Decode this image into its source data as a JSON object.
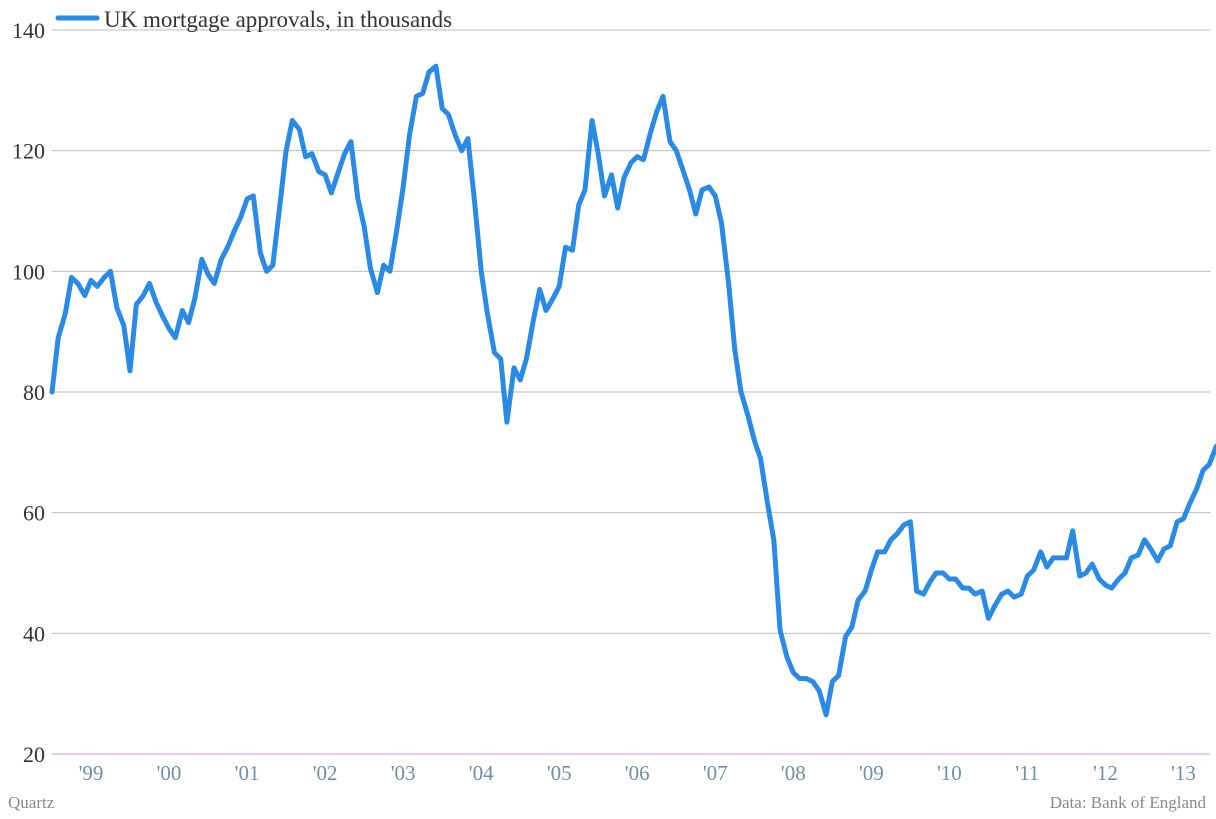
{
  "colors": {
    "series": "#2a8be6",
    "grid": "#bdbdbd",
    "baseline": "#d88fd6",
    "ytick": "#333333",
    "xtick": "#6f8fa6",
    "footer": "#8a8a8a"
  },
  "footer": {
    "source_left": "Quartz",
    "source_right": "Data: Bank of England"
  },
  "chart_data": {
    "type": "line",
    "title": "",
    "xlabel": "",
    "ylabel": "",
    "ylim": [
      20,
      140
    ],
    "yticks": [
      20,
      40,
      60,
      80,
      100,
      120,
      140
    ],
    "xlim": [
      1999.0,
      2013.75
    ],
    "grid": "horizontal",
    "legend": {
      "placement": "top-left"
    },
    "x_tick_labels": [
      "'99",
      "'00",
      "'01",
      "'02",
      "'03",
      "'04",
      "'05",
      "'06",
      "'07",
      "'08",
      "'09",
      "'10",
      "'11",
      "'12",
      "'13"
    ],
    "series": [
      {
        "name": "UK mortgage approvals, in thousands",
        "points": [
          [
            1999.0,
            80.0
          ],
          [
            1999.08,
            89.0
          ],
          [
            1999.17,
            93.0
          ],
          [
            1999.25,
            99.0
          ],
          [
            1999.33,
            98.0
          ],
          [
            1999.42,
            96.0
          ],
          [
            1999.5,
            98.5
          ],
          [
            1999.58,
            97.5
          ],
          [
            1999.67,
            99.0
          ],
          [
            1999.75,
            100.0
          ],
          [
            1999.83,
            94.0
          ],
          [
            1999.92,
            91.0
          ],
          [
            2000.0,
            83.5
          ],
          [
            2000.08,
            94.5
          ],
          [
            2000.17,
            96.0
          ],
          [
            2000.25,
            98.0
          ],
          [
            2000.33,
            95.0
          ],
          [
            2000.42,
            92.5
          ],
          [
            2000.5,
            90.5
          ],
          [
            2000.58,
            89.0
          ],
          [
            2000.67,
            93.5
          ],
          [
            2000.75,
            91.5
          ],
          [
            2000.83,
            95.5
          ],
          [
            2000.92,
            102.0
          ],
          [
            2001.0,
            99.5
          ],
          [
            2001.08,
            98.0
          ],
          [
            2001.17,
            102.0
          ],
          [
            2001.25,
            104.0
          ],
          [
            2001.33,
            106.5
          ],
          [
            2001.42,
            109.0
          ],
          [
            2001.5,
            112.0
          ],
          [
            2001.58,
            112.5
          ],
          [
            2001.67,
            103.0
          ],
          [
            2001.75,
            100.0
          ],
          [
            2001.83,
            101.0
          ],
          [
            2001.92,
            111.0
          ],
          [
            2002.0,
            120.0
          ],
          [
            2002.08,
            125.0
          ],
          [
            2002.17,
            123.5
          ],
          [
            2002.25,
            119.0
          ],
          [
            2002.33,
            119.5
          ],
          [
            2002.42,
            116.5
          ],
          [
            2002.5,
            116.0
          ],
          [
            2002.58,
            113.0
          ],
          [
            2002.67,
            116.5
          ],
          [
            2002.75,
            119.5
          ],
          [
            2002.83,
            121.5
          ],
          [
            2002.92,
            112.0
          ],
          [
            2003.0,
            107.5
          ],
          [
            2003.08,
            100.5
          ],
          [
            2003.17,
            96.5
          ],
          [
            2003.25,
            101.0
          ],
          [
            2003.33,
            100.0
          ],
          [
            2003.42,
            107.0
          ],
          [
            2003.5,
            114.0
          ],
          [
            2003.58,
            122.5
          ],
          [
            2003.67,
            129.0
          ],
          [
            2003.75,
            129.5
          ],
          [
            2003.83,
            133.0
          ],
          [
            2003.92,
            134.0
          ],
          [
            2004.0,
            127.0
          ],
          [
            2004.08,
            126.0
          ],
          [
            2004.17,
            122.5
          ],
          [
            2004.25,
            120.0
          ],
          [
            2004.33,
            122.0
          ],
          [
            2004.42,
            111.0
          ],
          [
            2004.5,
            100.0
          ],
          [
            2004.58,
            93.0
          ],
          [
            2004.67,
            86.5
          ],
          [
            2004.75,
            85.5
          ],
          [
            2004.83,
            75.0
          ],
          [
            2004.92,
            84.0
          ],
          [
            2005.0,
            82.0
          ],
          [
            2005.08,
            85.5
          ],
          [
            2005.17,
            92.0
          ],
          [
            2005.25,
            97.0
          ],
          [
            2005.33,
            93.5
          ],
          [
            2005.42,
            95.5
          ],
          [
            2005.5,
            97.5
          ],
          [
            2005.58,
            104.0
          ],
          [
            2005.67,
            103.5
          ],
          [
            2005.75,
            111.0
          ],
          [
            2005.83,
            113.5
          ],
          [
            2005.92,
            125.0
          ],
          [
            2006.0,
            119.5
          ],
          [
            2006.08,
            112.5
          ],
          [
            2006.17,
            116.0
          ],
          [
            2006.25,
            110.5
          ],
          [
            2006.33,
            115.5
          ],
          [
            2006.42,
            118.0
          ],
          [
            2006.5,
            119.0
          ],
          [
            2006.58,
            118.5
          ],
          [
            2006.67,
            123.0
          ],
          [
            2006.75,
            126.5
          ],
          [
            2006.83,
            129.0
          ],
          [
            2006.92,
            121.5
          ],
          [
            2007.0,
            120.0
          ],
          [
            2007.08,
            117.0
          ],
          [
            2007.17,
            113.5
          ],
          [
            2007.25,
            109.5
          ],
          [
            2007.33,
            113.5
          ],
          [
            2007.42,
            114.0
          ],
          [
            2007.5,
            112.5
          ],
          [
            2007.58,
            108.0
          ],
          [
            2007.67,
            98.0
          ],
          [
            2007.75,
            87.0
          ],
          [
            2007.83,
            80.0
          ],
          [
            2007.92,
            76.0
          ],
          [
            2008.0,
            72.0
          ],
          [
            2008.08,
            69.0
          ],
          [
            2008.17,
            61.5
          ],
          [
            2008.25,
            55.5
          ],
          [
            2008.33,
            40.5
          ],
          [
            2008.42,
            36.0
          ],
          [
            2008.5,
            33.5
          ],
          [
            2008.58,
            32.5
          ],
          [
            2008.67,
            32.5
          ],
          [
            2008.75,
            32.0
          ],
          [
            2008.83,
            30.5
          ],
          [
            2008.92,
            26.5
          ],
          [
            2009.0,
            32.0
          ],
          [
            2009.08,
            33.0
          ],
          [
            2009.17,
            39.5
          ],
          [
            2009.25,
            41.0
          ],
          [
            2009.33,
            45.5
          ],
          [
            2009.42,
            47.0
          ],
          [
            2009.5,
            50.5
          ],
          [
            2009.58,
            53.5
          ],
          [
            2009.67,
            53.5
          ],
          [
            2009.75,
            55.5
          ],
          [
            2009.83,
            56.5
          ],
          [
            2009.92,
            58.0
          ],
          [
            2010.0,
            58.5
          ],
          [
            2010.08,
            47.0
          ],
          [
            2010.17,
            46.5
          ],
          [
            2010.25,
            48.5
          ],
          [
            2010.33,
            50.0
          ],
          [
            2010.42,
            50.0
          ],
          [
            2010.5,
            49.0
          ],
          [
            2010.58,
            49.0
          ],
          [
            2010.67,
            47.5
          ],
          [
            2010.75,
            47.5
          ],
          [
            2010.83,
            46.5
          ],
          [
            2010.92,
            47.0
          ],
          [
            2011.0,
            42.5
          ],
          [
            2011.08,
            44.5
          ],
          [
            2011.17,
            46.5
          ],
          [
            2011.25,
            47.0
          ],
          [
            2011.33,
            46.0
          ],
          [
            2011.42,
            46.5
          ],
          [
            2011.5,
            49.5
          ],
          [
            2011.58,
            50.5
          ],
          [
            2011.67,
            53.5
          ],
          [
            2011.75,
            51.0
          ],
          [
            2011.83,
            52.5
          ],
          [
            2011.92,
            52.5
          ],
          [
            2012.0,
            52.5
          ],
          [
            2012.08,
            57.0
          ],
          [
            2012.17,
            49.5
          ],
          [
            2012.25,
            50.0
          ],
          [
            2012.33,
            51.5
          ],
          [
            2012.42,
            49.0
          ],
          [
            2012.5,
            48.0
          ],
          [
            2012.58,
            47.5
          ],
          [
            2012.67,
            49.0
          ],
          [
            2012.75,
            50.0
          ],
          [
            2012.83,
            52.5
          ],
          [
            2012.92,
            53.0
          ],
          [
            2013.0,
            55.5
          ],
          [
            2013.08,
            54.0
          ],
          [
            2013.17,
            52.0
          ],
          [
            2013.25,
            54.0
          ],
          [
            2013.33,
            54.5
          ],
          [
            2013.42,
            58.5
          ],
          [
            2013.5,
            59.0
          ],
          [
            2013.58,
            61.5
          ],
          [
            2013.67,
            64.0
          ],
          [
            2013.75,
            67.0
          ],
          [
            2013.83,
            68.0
          ],
          [
            2013.92,
            71.0
          ]
        ]
      }
    ]
  }
}
